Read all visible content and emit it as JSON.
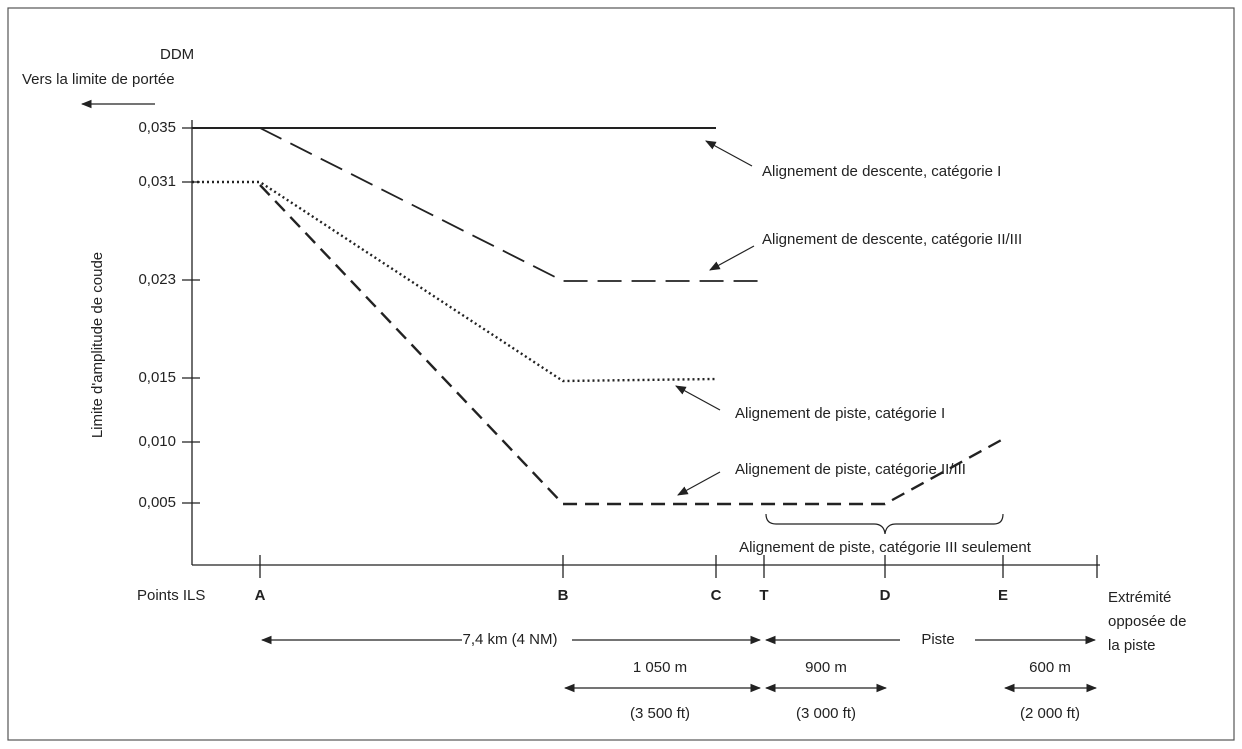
{
  "y_axis": {
    "unit": "DDM",
    "direction_label": "Vers la limite de portée",
    "title": "Limite d'amplitude de coude",
    "ticks": [
      "0,035",
      "0,031",
      "0,023",
      "0,015",
      "0,010",
      "0,005"
    ]
  },
  "x_axis": {
    "start_label": "Points ILS",
    "points": [
      "A",
      "B",
      "C",
      "T",
      "D",
      "E"
    ],
    "end_label": [
      "Extrémité",
      "opposée de",
      "la piste"
    ]
  },
  "curves": [
    "Alignement de descente, catégorie I",
    "Alignement de descente, catégorie II/III",
    "Alignement de piste, catégorie I",
    "Alignement de piste, catégorie II/III"
  ],
  "category_note": "Alignement de piste, catégorie III seulement",
  "distances": {
    "approach": "7,4 km (4 NM)",
    "runway": "Piste",
    "segments": [
      {
        "metric": "1 050 m",
        "imperial": "(3 500 ft)"
      },
      {
        "metric": "900 m",
        "imperial": "(3 000 ft)"
      },
      {
        "metric": "600 m",
        "imperial": "(2 000 ft)"
      }
    ]
  }
}
